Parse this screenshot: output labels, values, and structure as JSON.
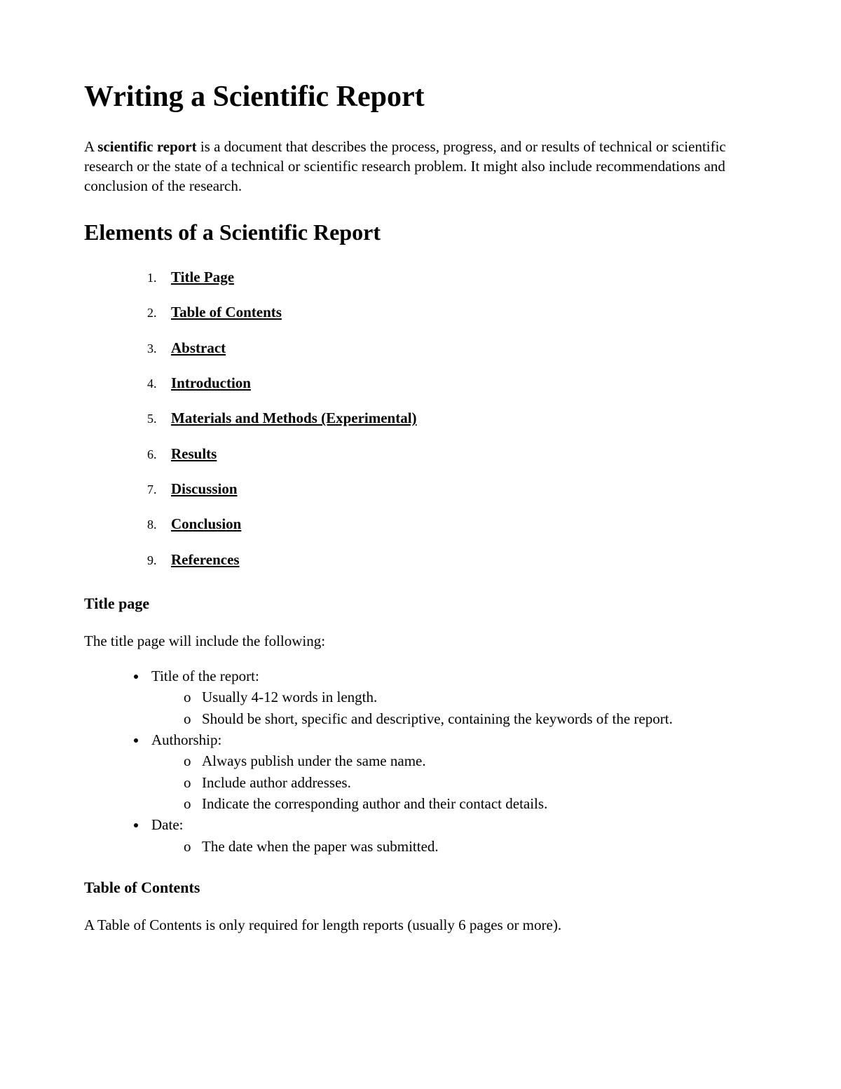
{
  "title": "Writing a Scientific Report",
  "intro_prefix": "A ",
  "intro_bold": "scientific report",
  "intro_rest": " is a document that describes the process, progress, and or results of technical or scientific research or the state of a technical or scientific research problem. It might also include recommendations and conclusion of the research.",
  "subtitle": "Elements of a Scientific Report",
  "elements": [
    "Title Page",
    "Table of Contents",
    "Abstract",
    "Introduction",
    "Materials and Methods (Experimental)",
    "Results",
    "Discussion",
    "Conclusion",
    "References"
  ],
  "section_title_page": "Title page",
  "title_page_intro": "The title page will include the following:",
  "title_page_items": [
    {
      "label": "Title of the report:",
      "sub": [
        "Usually 4-12 words in length.",
        "Should be short, specific and descriptive, containing the keywords of the report."
      ]
    },
    {
      "label": "Authorship:",
      "sub": [
        "Always publish under the same name.",
        "Include author addresses.",
        "Indicate the corresponding author and their contact details."
      ]
    },
    {
      "label": "Date:",
      "sub": [
        "The date when the paper was submitted."
      ]
    }
  ],
  "section_toc": "Table of Contents",
  "toc_body": "A Table of Contents is only required for length reports (usually 6 pages or more)."
}
